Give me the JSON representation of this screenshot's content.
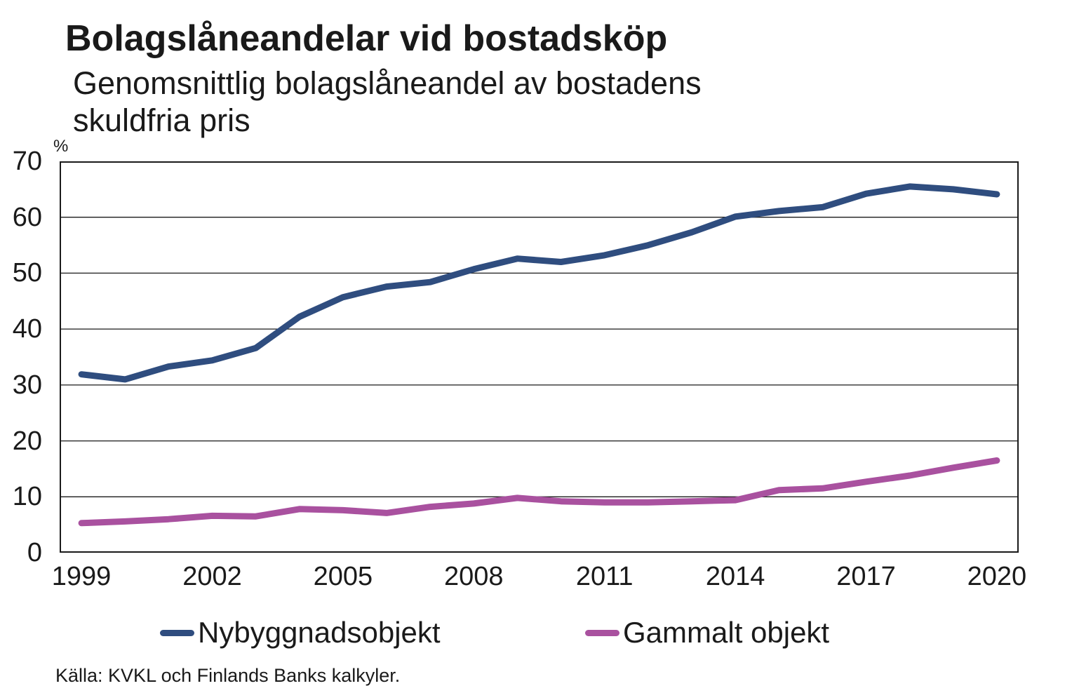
{
  "header": {
    "title": "Bolagslåneandelar vid bostadsköp",
    "subtitle": "Genomsnittlig bolagslåneandel av bostadens skuldfria pris"
  },
  "chart_data": {
    "type": "line",
    "title": "Bolagslåneandelar vid bostadsköp",
    "subtitle": "Genomsnittlig bolagslåneandel av bostadens skuldfria pris",
    "ylabel": "%",
    "ylim": [
      0,
      70
    ],
    "ytick_step": 10,
    "grid": "horizontal",
    "legend_position": "bottom",
    "x": [
      1999,
      2000,
      2001,
      2002,
      2003,
      2004,
      2005,
      2006,
      2007,
      2008,
      2009,
      2010,
      2011,
      2012,
      2013,
      2014,
      2015,
      2016,
      2017,
      2018,
      2019,
      2020
    ],
    "xticks": [
      1999,
      2002,
      2005,
      2008,
      2011,
      2014,
      2017,
      2020
    ],
    "series": [
      {
        "name": "Nybyggnadsobjekt",
        "color": "#2f4d7f",
        "values": [
          31.9,
          31.0,
          33.3,
          34.4,
          36.6,
          42.2,
          45.7,
          47.6,
          48.4,
          50.7,
          52.6,
          52.0,
          53.2,
          55.0,
          57.3,
          60.1,
          61.1,
          61.8,
          64.2,
          65.5,
          65.0,
          64.1
        ]
      },
      {
        "name": "Gammalt objekt",
        "color": "#a9519f",
        "values": [
          5.3,
          5.6,
          6.0,
          6.6,
          6.5,
          7.8,
          7.6,
          7.1,
          8.2,
          8.8,
          9.8,
          9.2,
          9.0,
          9.0,
          9.2,
          9.4,
          11.2,
          11.5,
          12.7,
          13.8,
          15.2,
          16.5
        ]
      }
    ]
  },
  "source": {
    "text": "Källa: KVKL och Finlands Banks kalkyler."
  }
}
